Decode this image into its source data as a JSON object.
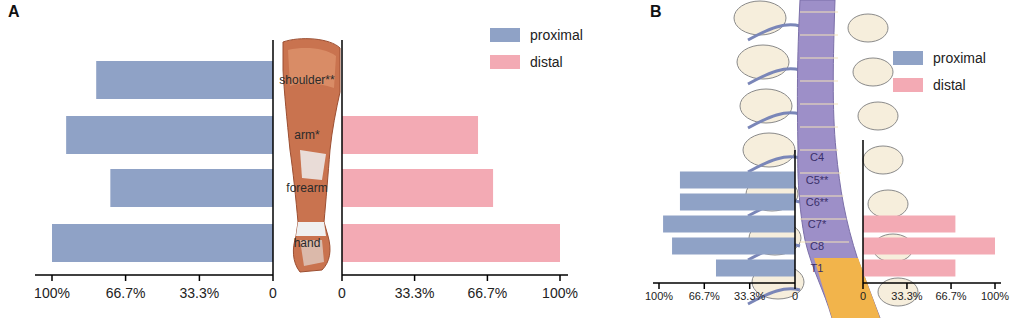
{
  "chart_data": [
    {
      "type": "bar",
      "title": "A",
      "orientation": "horizontal",
      "categories": [
        "shoulder**",
        "arm*",
        "forearm",
        "hand"
      ],
      "series": [
        {
          "name": "proximal",
          "color": "#8fa2c6",
          "values": [
            80,
            93.6,
            73.6,
            100
          ]
        },
        {
          "name": "distal",
          "color": "#f3aab4",
          "values": [
            null,
            62.4,
            69.3,
            100
          ]
        }
      ],
      "xlim": [
        0,
        100
      ],
      "xticks": [
        {
          "value": 100,
          "label": "100%"
        },
        {
          "value": 66.7,
          "label": "66.7%"
        },
        {
          "value": 33.3,
          "label": "33.3%"
        },
        0
      ],
      "legend": "top-right"
    },
    {
      "type": "bar",
      "title": "B",
      "orientation": "horizontal",
      "categories": [
        "C4",
        "C5**",
        "C6**",
        "C7*",
        "C8",
        "T1"
      ],
      "series": [
        {
          "name": "proximal",
          "color": "#8fa2c6",
          "values": [
            null,
            84.6,
            84.6,
            97,
            90.4,
            58.1
          ]
        },
        {
          "name": "distal",
          "color": "#f3aab4",
          "values": [
            null,
            null,
            null,
            70,
            100,
            70
          ]
        }
      ],
      "xlim": [
        0,
        100
      ],
      "xticks": [
        {
          "value": 100,
          "label": "100%"
        },
        {
          "value": 66.7,
          "label": "66.7%"
        },
        {
          "value": 33.3,
          "label": "33.3%"
        },
        0
      ],
      "legend": "top-right"
    }
  ]
}
